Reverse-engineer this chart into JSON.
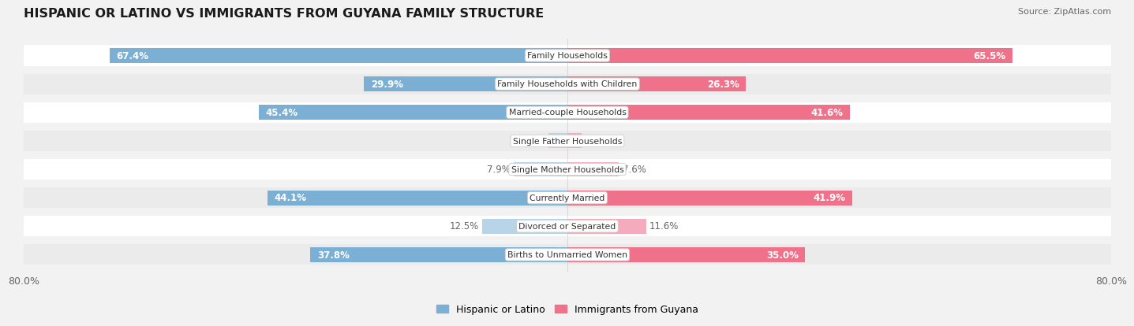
{
  "title": "HISPANIC OR LATINO VS IMMIGRANTS FROM GUYANA FAMILY STRUCTURE",
  "source": "Source: ZipAtlas.com",
  "categories": [
    "Family Households",
    "Family Households with Children",
    "Married-couple Households",
    "Single Father Households",
    "Single Mother Households",
    "Currently Married",
    "Divorced or Separated",
    "Births to Unmarried Women"
  ],
  "hispanic_values": [
    67.4,
    29.9,
    45.4,
    2.8,
    7.9,
    44.1,
    12.5,
    37.8
  ],
  "guyana_values": [
    65.5,
    26.3,
    41.6,
    2.1,
    7.6,
    41.9,
    11.6,
    35.0
  ],
  "axis_max": 80.0,
  "hispanic_color_strong": "#7BAFD4",
  "hispanic_color_light": "#B8D4E8",
  "guyana_color_strong": "#F0728A",
  "guyana_color_light": "#F5ABBE",
  "threshold_strong": 20.0,
  "bg_color": "#F2F2F2",
  "row_colors": [
    "#FFFFFF",
    "#EBEBEB"
  ],
  "label_color_white": "#FFFFFF",
  "label_color_dark": "#666666",
  "legend_hispanic": "Hispanic or Latino",
  "legend_guyana": "Immigrants from Guyana",
  "axis_max_label": "80.0%"
}
